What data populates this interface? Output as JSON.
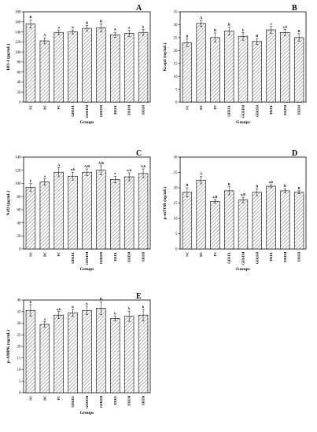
{
  "chart_data": [
    {
      "panel": "A",
      "type": "bar",
      "categories": [
        "NC",
        "DC",
        "PC",
        "GEKEL",
        "GEKEM",
        "GEKEH",
        "EKEL",
        "EKEM",
        "EKEH"
      ],
      "values": [
        156,
        122,
        139,
        140,
        147,
        148,
        134,
        137,
        139
      ],
      "errors": [
        8,
        6,
        5,
        4,
        6,
        8,
        5,
        6,
        6
      ],
      "letters": [
        "B",
        "A",
        "a",
        "b",
        "B",
        "B",
        "A",
        "a",
        "b"
      ],
      "xlabel": "Groups",
      "ylabel": "HO-1 (pg/mL)",
      "ylim": [
        0,
        180
      ],
      "yticks": [
        0,
        20,
        40,
        60,
        80,
        100,
        120,
        140,
        160,
        180
      ]
    },
    {
      "panel": "B",
      "type": "bar",
      "categories": [
        "NC",
        "DC",
        "PC",
        "GEKEL",
        "GEKEM",
        "GEKEH",
        "EKEL",
        "EKEM",
        "EKEH"
      ],
      "values": [
        23.0,
        30.5,
        25.0,
        27.5,
        25.5,
        23.5,
        28.0,
        27.0,
        25.0
      ],
      "errors": [
        1.5,
        1.2,
        1.8,
        1.5,
        1.5,
        1.2,
        1.3,
        1.2,
        1.5
      ],
      "letters": [
        "B",
        "A",
        "B",
        "B",
        "b",
        "B",
        "a",
        "a,b",
        "B"
      ],
      "xlabel": "Groups",
      "ylabel": "Kcap1 (ng/mL)",
      "ylim": [
        0,
        35
      ],
      "yticks": [
        0,
        5,
        10,
        15,
        20,
        25,
        30,
        35
      ]
    },
    {
      "panel": "C",
      "type": "bar",
      "categories": [
        "NC",
        "DC",
        "PC",
        "GEKEL",
        "GEKEM",
        "GEKEH",
        "EKEL",
        "EKEM",
        "EKEH"
      ],
      "values": [
        94,
        102,
        117,
        111,
        117,
        120,
        106,
        110,
        115
      ],
      "errors": [
        6,
        5,
        7,
        6,
        5,
        7,
        5,
        6,
        7
      ],
      "letters": [
        "b",
        "a",
        "A",
        "a,b",
        "A,B",
        "A,B",
        "a",
        "a,b",
        "A,b"
      ],
      "xlabel": "Groups",
      "ylabel": "Nrf2 (pg/mL)",
      "ylim": [
        0,
        140
      ],
      "yticks": [
        0,
        20,
        40,
        60,
        80,
        100,
        120,
        140
      ]
    },
    {
      "panel": "D",
      "type": "bar",
      "categories": [
        "NC",
        "DC",
        "PC",
        "GEKEL",
        "GEKEM",
        "GEKEH",
        "EKEL",
        "EKEM",
        "EKEH"
      ],
      "values": [
        18.5,
        22.5,
        15.5,
        19.0,
        16.0,
        18.5,
        20.5,
        19.0,
        18.5
      ],
      "errors": [
        1.5,
        1.2,
        0.6,
        1.3,
        0.9,
        1.1,
        0.5,
        0.7,
        0.5
      ],
      "letters": [
        "B",
        "A",
        "a,B",
        "B",
        "a,B",
        "B",
        "a,b",
        "B",
        "B"
      ],
      "xlabel": "Groups",
      "ylabel": "p-mTOR (ng/mL)",
      "ylim": [
        0,
        30
      ],
      "yticks": [
        0,
        5,
        10,
        15,
        20,
        25,
        30
      ]
    },
    {
      "panel": "E",
      "type": "bar",
      "categories": [
        "NC",
        "DC",
        "PC",
        "GEKEL",
        "GEKEM",
        "GEKEH",
        "EKEL",
        "EKEM",
        "EKEH"
      ],
      "values": [
        35.5,
        29.5,
        33.5,
        34.5,
        35.5,
        36.5,
        32.0,
        33.0,
        33.5
      ],
      "errors": [
        2.5,
        1.2,
        1.5,
        1.5,
        1.8,
        2.8,
        1.0,
        2.2,
        2.5
      ],
      "letters": [
        "b",
        "a",
        "a,b",
        "b",
        "b",
        "B",
        "b",
        "b",
        "b"
      ],
      "xlabel": "Groups",
      "ylabel": "p-AMPK (ng/mL)",
      "ylim": [
        0,
        40
      ],
      "yticks": [
        0,
        5,
        10,
        15,
        20,
        25,
        30,
        35,
        40
      ]
    }
  ]
}
